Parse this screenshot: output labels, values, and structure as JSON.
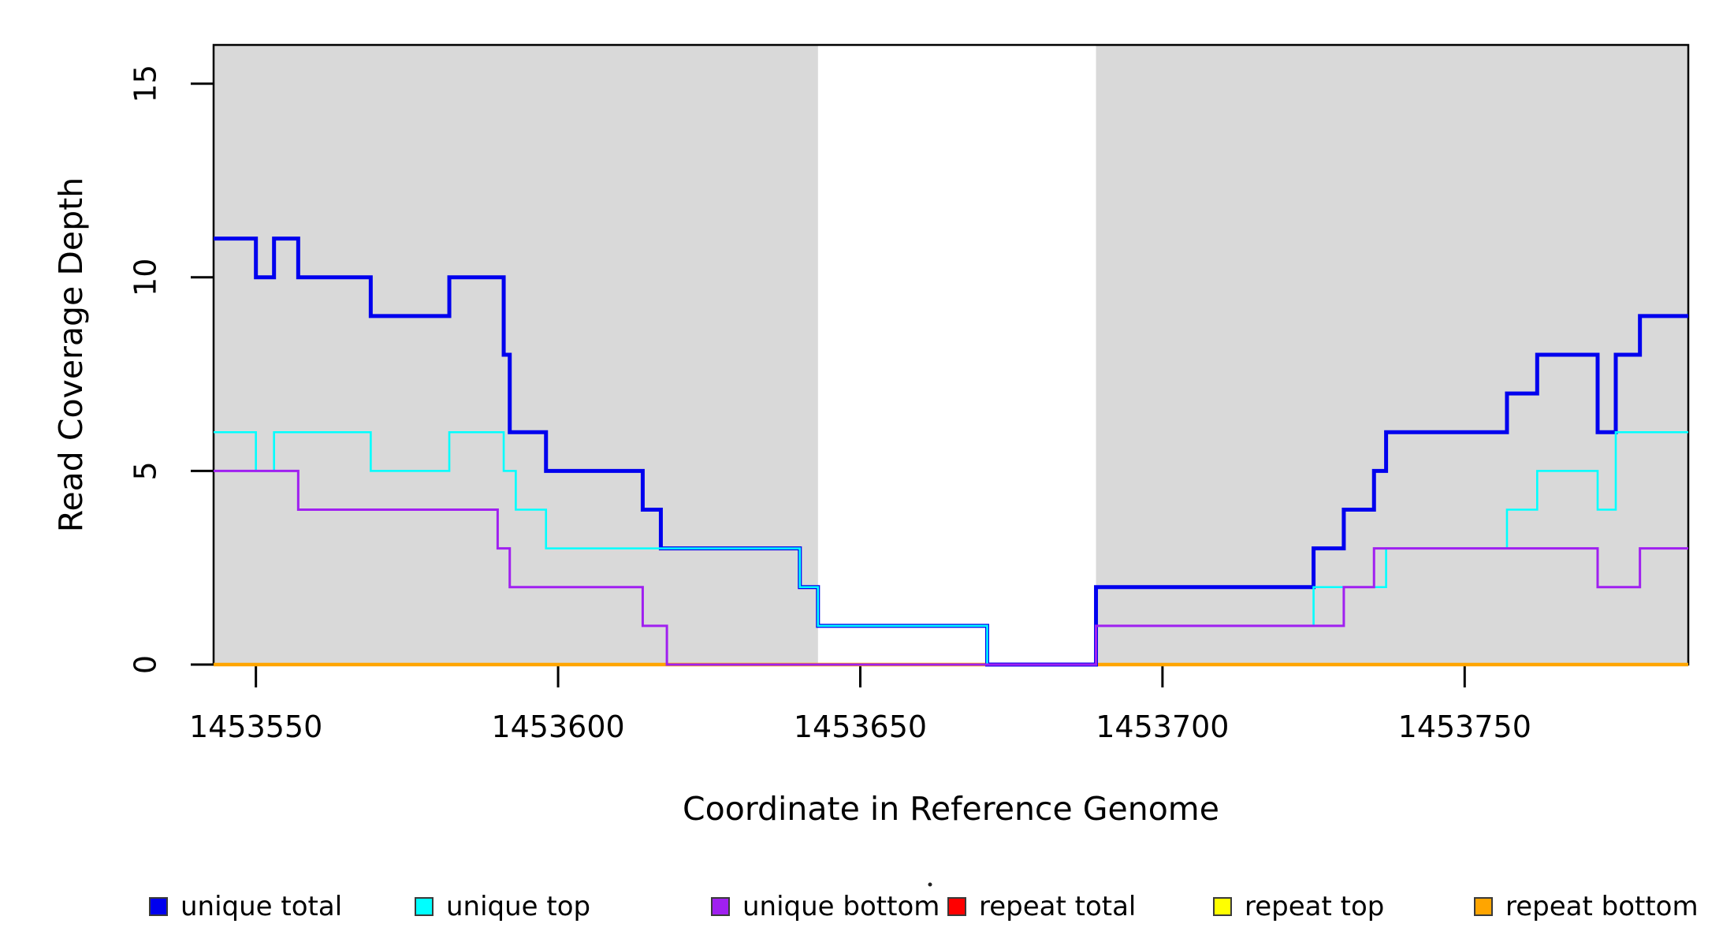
{
  "figure": {
    "background": "#ffffff"
  },
  "chart_data": {
    "type": "line",
    "subtype": "step-coverage",
    "title": "",
    "xlabel": "Coordinate in Reference Genome",
    "ylabel": "Read Coverage Depth",
    "xlim": [
      1453543,
      1453787
    ],
    "ylim": [
      0,
      16
    ],
    "x_ticks": [
      1453550,
      1453600,
      1453650,
      1453700,
      1453750
    ],
    "y_ticks": [
      0,
      5,
      10,
      15
    ],
    "grid": false,
    "legend_position": "bottom",
    "shaded_regions": {
      "color": "#D9D9D9",
      "ranges": [
        [
          1453543,
          1453643
        ],
        [
          1453689,
          1453787
        ]
      ]
    },
    "draw_order": [
      "repeat total",
      "repeat top",
      "repeat bottom",
      "unique total",
      "unique top",
      "unique bottom"
    ],
    "legend_order": [
      "unique total",
      "unique top",
      "unique bottom",
      "repeat total",
      "repeat top",
      "repeat bottom"
    ],
    "series": [
      {
        "name": "unique total",
        "color": "#0000EE",
        "width": 5,
        "points": [
          [
            1453543,
            11
          ],
          [
            1453550,
            10
          ],
          [
            1453553,
            11
          ],
          [
            1453557,
            10
          ],
          [
            1453569,
            9
          ],
          [
            1453582,
            10
          ],
          [
            1453591,
            8
          ],
          [
            1453592,
            6
          ],
          [
            1453598,
            5
          ],
          [
            1453614,
            4
          ],
          [
            1453617,
            3
          ],
          [
            1453640,
            2
          ],
          [
            1453643,
            1
          ],
          [
            1453671,
            0
          ],
          [
            1453689,
            2
          ],
          [
            1453725,
            3
          ],
          [
            1453730,
            4
          ],
          [
            1453735,
            5
          ],
          [
            1453737,
            6
          ],
          [
            1453757,
            7
          ],
          [
            1453762,
            8
          ],
          [
            1453772,
            6
          ],
          [
            1453775,
            8
          ],
          [
            1453779,
            9
          ]
        ]
      },
      {
        "name": "unique top",
        "color": "#00FFFF",
        "width": 2.6,
        "points": [
          [
            1453543,
            6
          ],
          [
            1453550,
            5
          ],
          [
            1453553,
            6
          ],
          [
            1453569,
            5
          ],
          [
            1453582,
            6
          ],
          [
            1453591,
            5
          ],
          [
            1453593,
            4
          ],
          [
            1453598,
            3
          ],
          [
            1453640,
            2
          ],
          [
            1453643,
            1
          ],
          [
            1453671,
            0
          ],
          [
            1453689,
            1
          ],
          [
            1453725,
            2
          ],
          [
            1453737,
            3
          ],
          [
            1453757,
            4
          ],
          [
            1453762,
            5
          ],
          [
            1453772,
            4
          ],
          [
            1453775,
            6
          ]
        ]
      },
      {
        "name": "unique bottom",
        "color": "#A020F0",
        "width": 3,
        "points": [
          [
            1453543,
            5
          ],
          [
            1453557,
            4
          ],
          [
            1453590,
            3
          ],
          [
            1453592,
            2
          ],
          [
            1453614,
            1
          ],
          [
            1453618,
            0
          ],
          [
            1453689,
            1
          ],
          [
            1453730,
            2
          ],
          [
            1453735,
            3
          ],
          [
            1453772,
            2
          ],
          [
            1453779,
            3
          ]
        ]
      },
      {
        "name": "repeat total",
        "color": "#FF0000",
        "width": 3.5,
        "points": [
          [
            1453543,
            0
          ]
        ]
      },
      {
        "name": "repeat top",
        "color": "#FFFF00",
        "width": 2.5,
        "points": [
          [
            1453543,
            0
          ]
        ]
      },
      {
        "name": "repeat bottom",
        "color": "#FFA500",
        "width": 4.5,
        "points": [
          [
            1453543,
            0
          ]
        ]
      }
    ],
    "annotations": [
      {
        "type": "stray-dot",
        "note": "small dark speck left of repeat-total legend swatch"
      }
    ]
  }
}
